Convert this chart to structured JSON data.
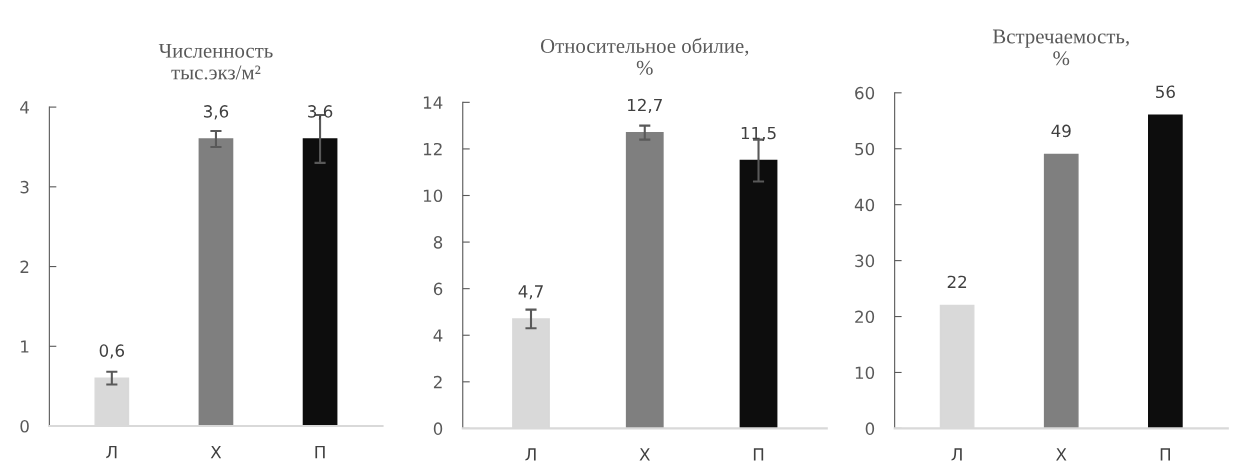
{
  "chart_data": [
    {
      "type": "bar",
      "title": "Численность\nтыс.экз/м²",
      "categories": [
        "Л",
        "Х",
        "П"
      ],
      "values": [
        0.6,
        3.6,
        3.6
      ],
      "colors": [
        "#d9d9d9",
        "#7f7f7f",
        "#0d0d0d"
      ],
      "errors": [
        0.08,
        0.1,
        0.3
      ],
      "value_labels": [
        "0,6",
        "3,6",
        "3,6"
      ],
      "ylim": [
        0,
        4
      ],
      "yticks": [
        0,
        1,
        2,
        3,
        4
      ],
      "grid": false,
      "legend": false
    },
    {
      "type": "bar",
      "title": "Относительное обилие,\n%",
      "categories": [
        "Л",
        "Х",
        "П"
      ],
      "values": [
        4.7,
        12.7,
        11.5
      ],
      "colors": [
        "#d9d9d9",
        "#7f7f7f",
        "#0d0d0d"
      ],
      "errors": [
        0.4,
        0.3,
        0.9
      ],
      "value_labels": [
        "4,7",
        "12,7",
        "11,5"
      ],
      "ylim": [
        0,
        14
      ],
      "yticks": [
        0,
        2,
        4,
        6,
        8,
        10,
        12,
        14
      ],
      "grid": false,
      "legend": false
    },
    {
      "type": "bar",
      "title": "Встречаемость,\n%",
      "categories": [
        "Л",
        "Х",
        "П"
      ],
      "values": [
        22,
        49,
        56
      ],
      "colors": [
        "#d9d9d9",
        "#7f7f7f",
        "#0d0d0d"
      ],
      "data_labels": true,
      "ylim": [
        0,
        60
      ],
      "yticks": [
        0,
        10,
        20,
        30,
        40,
        50,
        60
      ],
      "grid": false,
      "legend": false
    }
  ]
}
